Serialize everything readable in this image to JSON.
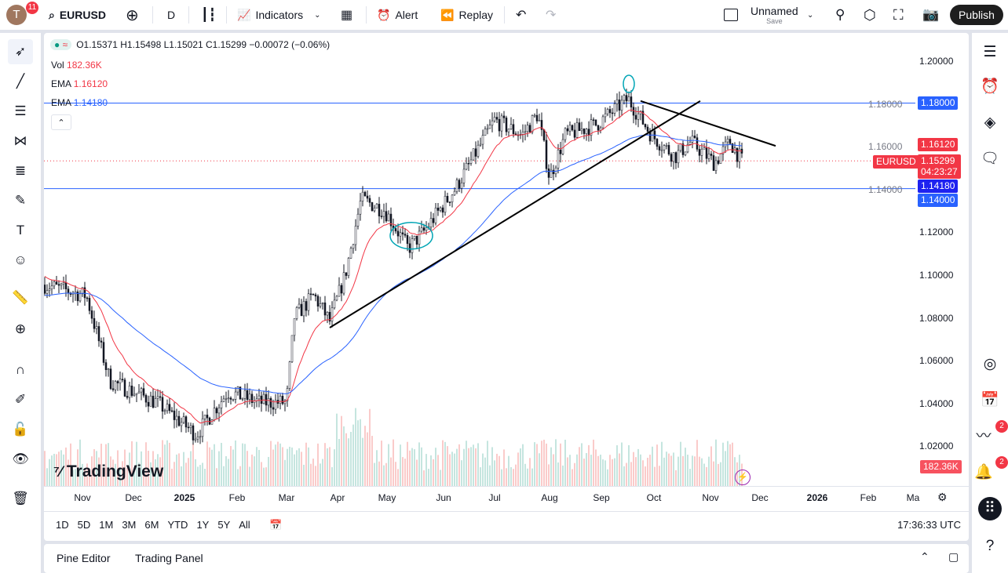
{
  "header": {
    "avatar_letter": "T",
    "notifications": "11",
    "symbol": "EURUSD",
    "interval": "D",
    "indicators": "Indicators",
    "alert": "Alert",
    "replay": "Replay",
    "layout_name": "Unnamed",
    "save": "Save",
    "publish": "Publish"
  },
  "legend": {
    "ohlc": "O1.15371 H1.15498 L1.15021 C1.15299 −0.00072 (−0.06%)",
    "vol_label": "Vol",
    "vol_value": "182.36K",
    "ema1_label": "EMA",
    "ema1_value": "1.16120",
    "ema2_label": "EMA",
    "ema2_value": "1.14180"
  },
  "price_axis": {
    "ticks": [
      "1.20000",
      "1.18000",
      "1.16000",
      "1.14000",
      "1.12000",
      "1.10000",
      "1.08000",
      "1.06000",
      "1.04000",
      "1.02000"
    ],
    "labels": {
      "hline_top": "1.18000",
      "ema1": "1.16120",
      "symbol": "EURUSD",
      "last": "1.15299",
      "countdown": "04:23:27",
      "ema2": "1.14180",
      "hline_bottom": "1.14000",
      "volume": "182.36K"
    }
  },
  "time_axis": [
    "Nov",
    "Dec",
    "2025",
    "Feb",
    "Mar",
    "Apr",
    "May",
    "Jun",
    "Jul",
    "Aug",
    "Sep",
    "Oct",
    "Nov",
    "Dec",
    "2026",
    "Feb",
    "Ma"
  ],
  "ranges": [
    "1D",
    "5D",
    "1M",
    "3M",
    "6M",
    "YTD",
    "1Y",
    "5Y",
    "All"
  ],
  "clock": "17:36:33 UTC",
  "bottom_tabs": [
    "Pine Editor",
    "Trading Panel"
  ],
  "watermark": "TradingView",
  "right_badges": {
    "ideas": "2",
    "notifications": "2"
  },
  "colors": {
    "up": "#089981",
    "down": "#f23645",
    "ema_fast": "#f23645",
    "ema_slow": "#2962ff",
    "hline": "#2962ff"
  }
}
